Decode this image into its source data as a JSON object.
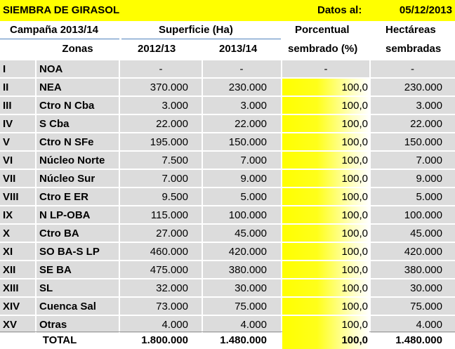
{
  "title": "SIEMBRA DE GIRASOL",
  "datos_label": "Datos al:",
  "date": "05/12/2013",
  "header": {
    "campaign": "Campaña 2013/14",
    "superficie": "Superficie (Ha)",
    "porcentual_line1": "Porcentual",
    "porcentual_line2": "sembrado (%)",
    "hectareas_line1": "Hectáreas",
    "hectareas_line2": "sembradas",
    "zonas": "Zonas",
    "year_a": "2012/13",
    "year_b": "2013/14"
  },
  "rows": [
    {
      "num": "I",
      "zone": "NOA",
      "a": "-",
      "b": "-",
      "pct": "-",
      "ha": "-"
    },
    {
      "num": "II",
      "zone": "NEA",
      "a": "370.000",
      "b": "230.000",
      "pct": "100,0",
      "ha": "230.000"
    },
    {
      "num": "III",
      "zone": "Ctro N Cba",
      "a": "3.000",
      "b": "3.000",
      "pct": "100,0",
      "ha": "3.000"
    },
    {
      "num": "IV",
      "zone": "S Cba",
      "a": "22.000",
      "b": "22.000",
      "pct": "100,0",
      "ha": "22.000"
    },
    {
      "num": "V",
      "zone": "Ctro N SFe",
      "a": "195.000",
      "b": "150.000",
      "pct": "100,0",
      "ha": "150.000"
    },
    {
      "num": "VI",
      "zone": "Núcleo Norte",
      "a": "7.500",
      "b": "7.000",
      "pct": "100,0",
      "ha": "7.000"
    },
    {
      "num": "VII",
      "zone": "Núcleo Sur",
      "a": "7.000",
      "b": "9.000",
      "pct": "100,0",
      "ha": "9.000"
    },
    {
      "num": "VIII",
      "zone": "Ctro E ER",
      "a": "9.500",
      "b": "5.000",
      "pct": "100,0",
      "ha": "5.000"
    },
    {
      "num": "IX",
      "zone": "N LP-OBA",
      "a": "115.000",
      "b": "100.000",
      "pct": "100,0",
      "ha": "100.000"
    },
    {
      "num": "X",
      "zone": "Ctro BA",
      "a": "27.000",
      "b": "45.000",
      "pct": "100,0",
      "ha": "45.000"
    },
    {
      "num": "XI",
      "zone": "SO BA-S LP",
      "a": "460.000",
      "b": "420.000",
      "pct": "100,0",
      "ha": "420.000"
    },
    {
      "num": "XII",
      "zone": "SE BA",
      "a": "475.000",
      "b": "380.000",
      "pct": "100,0",
      "ha": "380.000"
    },
    {
      "num": "XIII",
      "zone": "SL",
      "a": "32.000",
      "b": "30.000",
      "pct": "100,0",
      "ha": "30.000"
    },
    {
      "num": "XIV",
      "zone": "Cuenca Sal",
      "a": "73.000",
      "b": "75.000",
      "pct": "100,0",
      "ha": "75.000"
    },
    {
      "num": "XV",
      "zone": "Otras",
      "a": "4.000",
      "b": "4.000",
      "pct": "100,0",
      "ha": "4.000"
    }
  ],
  "total": {
    "label": "TOTAL",
    "a": "1.800.000",
    "b": "1.480.000",
    "pct": "100,0",
    "ha": "1.480.000"
  },
  "colors": {
    "title_bg": "#ffff00",
    "row_gray": "#dcdcdc",
    "header_underline": "#4f81bd"
  }
}
